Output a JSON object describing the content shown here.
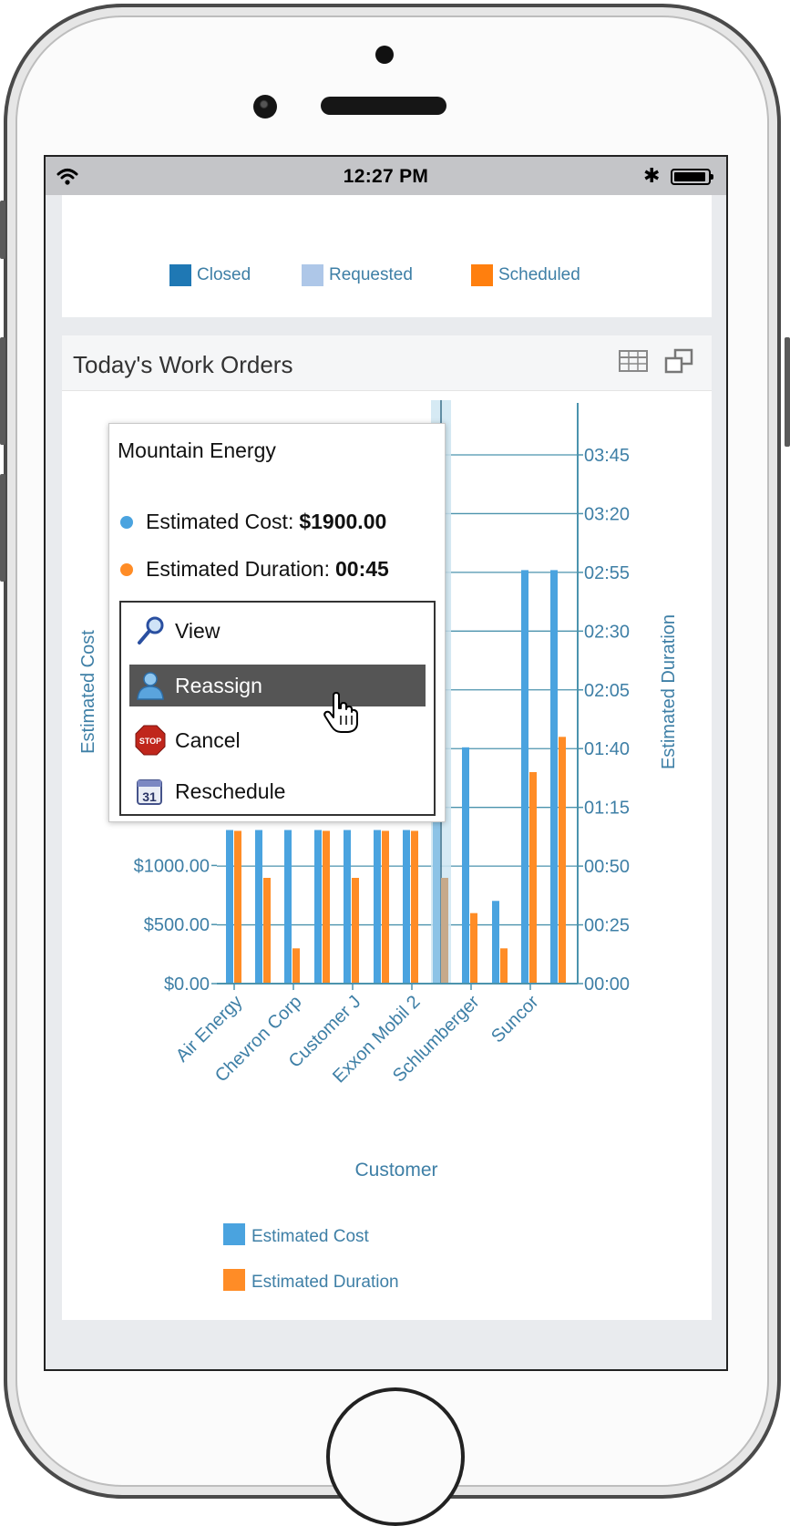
{
  "status_bar": {
    "time": "12:27 PM"
  },
  "top_legend": {
    "items": [
      {
        "label": "Closed",
        "color": "#1f78b4"
      },
      {
        "label": "Requested",
        "color": "#aec7e8"
      },
      {
        "label": "Scheduled",
        "color": "#ff7f0e"
      }
    ]
  },
  "work_orders_card": {
    "title": "Today's Work Orders",
    "icons": [
      "table-icon",
      "maximize-icon"
    ]
  },
  "chart_data": {
    "type": "bar",
    "xlabel": "Customer",
    "ylabel_left": "Estimated Cost",
    "ylabel_right": "Estimated Duration",
    "y_left_ticks": [
      "$0.00",
      "$500.00",
      "$1000.00"
    ],
    "y_right_ticks": [
      "00:00",
      "00:25",
      "00:50",
      "01:15",
      "01:40",
      "02:05",
      "02:30",
      "02:55",
      "03:20",
      "03:45"
    ],
    "y_right_minutes": [
      0,
      25,
      50,
      75,
      100,
      125,
      150,
      175,
      200,
      225
    ],
    "category_tick_labels": [
      "Air Energy",
      "Chevron Corp",
      "Customer J",
      "Exxon Mobil 2",
      "Schlumberger",
      "Suncor"
    ],
    "series": [
      {
        "name": "Estimated Cost",
        "color": "#4aa3df",
        "values": [
          1300,
          1300,
          1300,
          1300,
          1300,
          1300,
          1300,
          1900,
          2000,
          700,
          3500,
          3500
        ]
      },
      {
        "name": "Estimated Duration",
        "color": "#ff8c26",
        "values_minutes": [
          65,
          45,
          15,
          65,
          45,
          65,
          65,
          45,
          30,
          15,
          90,
          105
        ]
      }
    ],
    "legend": [
      "Estimated Cost",
      "Estimated Duration"
    ],
    "legend_position": "bottom"
  },
  "tooltip": {
    "title": "Mountain Energy",
    "rows": [
      {
        "label": "Estimated Cost:",
        "value": "$1900.00",
        "color": "#4aa3df"
      },
      {
        "label": "Estimated Duration:",
        "value": "00:45",
        "color": "#ff8c26"
      }
    ],
    "menu": [
      {
        "label": "View",
        "icon": "magnifier-icon"
      },
      {
        "label": "Reassign",
        "icon": "person-icon",
        "active": true
      },
      {
        "label": "Cancel",
        "icon": "stop-icon",
        "icon_text": "STOP"
      },
      {
        "label": "Reschedule",
        "icon": "calendar-icon",
        "icon_text": "31"
      }
    ]
  }
}
